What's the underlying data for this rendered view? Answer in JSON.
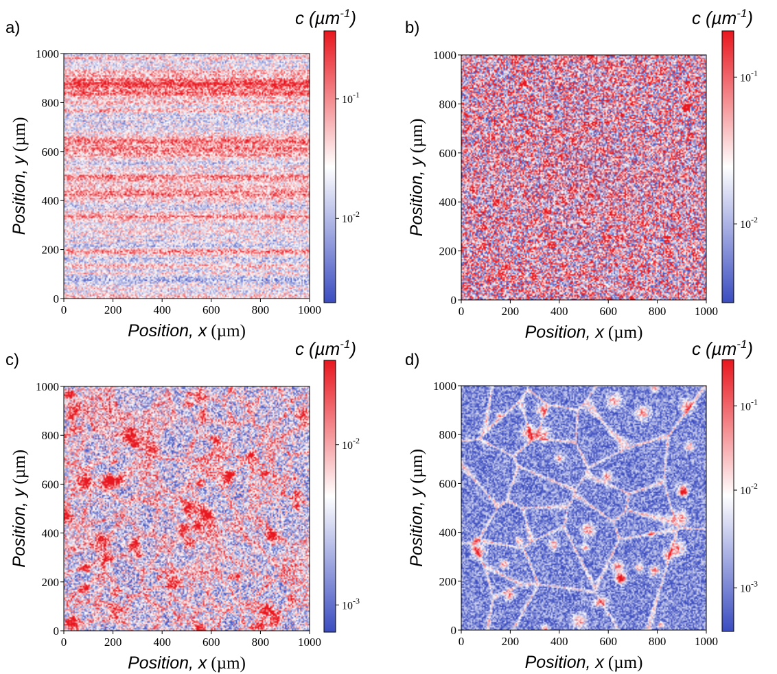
{
  "figure": {
    "panels": [
      {
        "letter": "a)",
        "pattern": "stripes",
        "cbar_ticks": [
          "10^-1",
          "10^-2"
        ]
      },
      {
        "letter": "b)",
        "pattern": "speckle",
        "cbar_ticks": [
          "10^-1",
          "10^-2"
        ]
      },
      {
        "letter": "c)",
        "pattern": "blobs",
        "cbar_ticks": [
          "10^-2",
          "10^-3"
        ]
      },
      {
        "letter": "d)",
        "pattern": "cells",
        "cbar_ticks": [
          "10^-1",
          "10^-2",
          "10^-3"
        ]
      }
    ],
    "colorbar_label_c": "c",
    "colorbar_label_unit": "(µm-1)",
    "xlabel_italic": "Position, x",
    "xlabel_unit": "(µm)",
    "ylabel_italic": "Position, y",
    "ylabel_unit": "(µm)",
    "tick_labels": [
      "0",
      "200",
      "400",
      "600",
      "800",
      "1000"
    ],
    "colormap": {
      "low": "#3b4cc0",
      "mid": "#ffffff",
      "high": "#e8161e"
    }
  },
  "chart_data": [
    {
      "type": "heatmap",
      "panel": "a)",
      "x_range": [
        0,
        1000
      ],
      "y_range": [
        0,
        1000
      ],
      "xlabel": "Position, x (µm)",
      "ylabel": "Position, y (µm)",
      "colorbar": {
        "label": "c (µm-1)",
        "scale": "log",
        "ticks": [
          0.1,
          0.01
        ]
      }
    },
    {
      "type": "heatmap",
      "panel": "b)",
      "x_range": [
        0,
        1000
      ],
      "y_range": [
        0,
        1000
      ],
      "xlabel": "Position, x (µm)",
      "ylabel": "Position, y (µm)",
      "colorbar": {
        "label": "c (µm-1)",
        "scale": "log",
        "ticks": [
          0.1,
          0.01
        ]
      }
    },
    {
      "type": "heatmap",
      "panel": "c)",
      "x_range": [
        0,
        1000
      ],
      "y_range": [
        0,
        1000
      ],
      "xlabel": "Position, x (µm)",
      "ylabel": "Position, y (µm)",
      "colorbar": {
        "label": "c (µm-1)",
        "scale": "log",
        "ticks": [
          0.01,
          0.001
        ]
      }
    },
    {
      "type": "heatmap",
      "panel": "d)",
      "x_range": [
        0,
        1000
      ],
      "y_range": [
        0,
        1000
      ],
      "xlabel": "Position, x (µm)",
      "ylabel": "Position, y (µm)",
      "colorbar": {
        "label": "c (µm-1)",
        "scale": "log",
        "ticks": [
          0.1,
          0.01,
          0.001
        ]
      }
    }
  ]
}
